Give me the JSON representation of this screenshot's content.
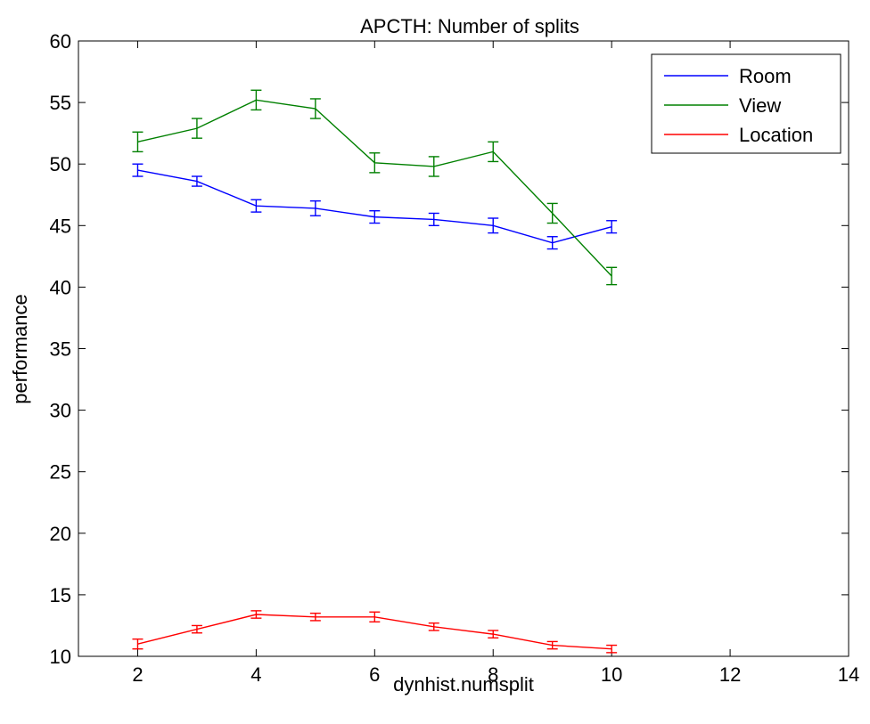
{
  "chart_data": {
    "type": "line",
    "title": "APCTH: Number of splits",
    "xlabel": "dynhist.numsplit",
    "ylabel": "performance",
    "xlim": [
      1,
      14
    ],
    "ylim": [
      10,
      60
    ],
    "xticks": [
      2,
      4,
      6,
      8,
      10,
      12,
      14
    ],
    "yticks": [
      10,
      15,
      20,
      25,
      30,
      35,
      40,
      45,
      50,
      55,
      60
    ],
    "grid": false,
    "legend": "top-right",
    "x": [
      2,
      3,
      4,
      5,
      6,
      7,
      8,
      9,
      10
    ],
    "series": [
      {
        "name": "Room",
        "color": "#0000ff",
        "values": [
          49.5,
          48.6,
          46.6,
          46.4,
          45.7,
          45.5,
          45.0,
          43.6,
          44.9
        ],
        "error": [
          0.5,
          0.4,
          0.5,
          0.6,
          0.5,
          0.5,
          0.6,
          0.5,
          0.5
        ]
      },
      {
        "name": "View",
        "color": "#008000",
        "values": [
          51.8,
          52.9,
          55.2,
          54.5,
          50.1,
          49.8,
          51.0,
          46.0,
          40.9
        ],
        "error": [
          0.8,
          0.8,
          0.8,
          0.8,
          0.8,
          0.8,
          0.8,
          0.8,
          0.7
        ]
      },
      {
        "name": "Location",
        "color": "#ff0000",
        "values": [
          11.0,
          12.2,
          13.4,
          13.2,
          13.2,
          12.4,
          11.8,
          10.9,
          10.6
        ],
        "error": [
          0.4,
          0.3,
          0.3,
          0.3,
          0.4,
          0.3,
          0.3,
          0.3,
          0.3
        ]
      }
    ]
  }
}
